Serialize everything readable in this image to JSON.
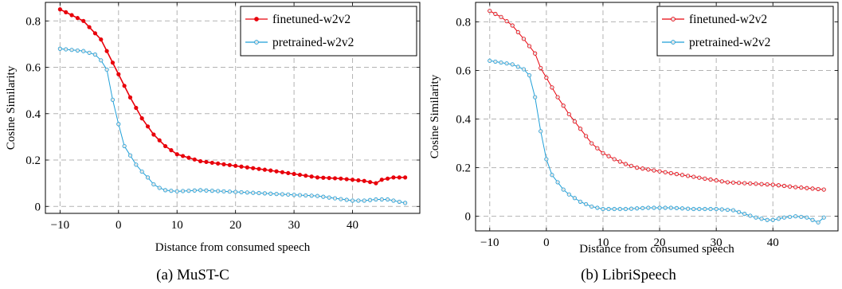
{
  "colors": {
    "finetuned": "#e8000b",
    "pretrained": "#1f9fd8",
    "grid": "#b3b3b3"
  },
  "chart_data": [
    {
      "type": "line",
      "caption": "(a)  MuST-C",
      "xlabel": "Distance from consumed speech",
      "ylabel": "Cosine Similarity",
      "xlim": [
        -12.5,
        51.5
      ],
      "ylim": [
        -0.03,
        0.88
      ],
      "xticks": [
        -10,
        0,
        10,
        20,
        30,
        40
      ],
      "xtick_labels": [
        "−10",
        "0",
        "10",
        "20",
        "30",
        "40"
      ],
      "yticks": [
        0,
        0.2,
        0.4,
        0.6,
        0.8
      ],
      "ytick_labels": [
        "0",
        "0.2",
        "0.4",
        "0.6",
        "0.8"
      ],
      "grid": true,
      "legend_position": "top-right",
      "marker_style": "filled",
      "series": [
        {
          "name": "finetuned-w2v2",
          "color_key": "finetuned",
          "points": [
            [
              -10,
              0.85
            ],
            [
              -6,
              0.8
            ],
            [
              -3,
              0.72
            ],
            [
              -2,
              0.67
            ],
            [
              0,
              0.57
            ],
            [
              2,
              0.47
            ],
            [
              4,
              0.38
            ],
            [
              6,
              0.31
            ],
            [
              8,
              0.26
            ],
            [
              10,
              0.225
            ],
            [
              14,
              0.195
            ],
            [
              20,
              0.175
            ],
            [
              26,
              0.155
            ],
            [
              30,
              0.14
            ],
            [
              34,
              0.125
            ],
            [
              38,
              0.12
            ],
            [
              42,
              0.11
            ],
            [
              44,
              0.1
            ],
            [
              45,
              0.115
            ],
            [
              47,
              0.125
            ],
            [
              49,
              0.125
            ]
          ]
        },
        {
          "name": "pretrained-w2v2",
          "color_key": "pretrained",
          "points": [
            [
              -10,
              0.68
            ],
            [
              -6,
              0.67
            ],
            [
              -4,
              0.655
            ],
            [
              -3,
              0.63
            ],
            [
              -2,
              0.59
            ],
            [
              -1,
              0.46
            ],
            [
              0,
              0.355
            ],
            [
              1,
              0.26
            ],
            [
              2,
              0.22
            ],
            [
              3,
              0.18
            ],
            [
              4,
              0.15
            ],
            [
              5,
              0.125
            ],
            [
              6,
              0.095
            ],
            [
              7,
              0.08
            ],
            [
              8,
              0.07
            ],
            [
              10,
              0.065
            ],
            [
              14,
              0.07
            ],
            [
              18,
              0.065
            ],
            [
              22,
              0.06
            ],
            [
              26,
              0.055
            ],
            [
              30,
              0.05
            ],
            [
              34,
              0.045
            ],
            [
              37,
              0.035
            ],
            [
              40,
              0.025
            ],
            [
              42,
              0.025
            ],
            [
              44,
              0.03
            ],
            [
              46,
              0.03
            ],
            [
              48,
              0.02
            ],
            [
              49,
              0.015
            ]
          ]
        }
      ]
    },
    {
      "type": "line",
      "caption": "(b)  LibriSpeech",
      "xlabel": "Distance from consumed speech",
      "ylabel": "Cosine Similarity",
      "xlim": [
        -12.5,
        51.5
      ],
      "ylim": [
        -0.06,
        0.88
      ],
      "xticks": [
        -10,
        0,
        10,
        20,
        30,
        40
      ],
      "xtick_labels": [
        "−10",
        "0",
        "10",
        "20",
        "30",
        "40"
      ],
      "yticks": [
        0,
        0.2,
        0.4,
        0.6,
        0.8
      ],
      "ytick_labels": [
        "0",
        "0.2",
        "0.4",
        "0.6",
        "0.8"
      ],
      "grid": true,
      "legend_position": "top-right",
      "marker_style": "hollow",
      "series": [
        {
          "name": "finetuned-w2v2",
          "color_key": "finetuned",
          "points": [
            [
              -10,
              0.845
            ],
            [
              -8,
              0.82
            ],
            [
              -6,
              0.785
            ],
            [
              -4,
              0.73
            ],
            [
              -2,
              0.67
            ],
            [
              -1,
              0.61
            ],
            [
              0,
              0.57
            ],
            [
              2,
              0.49
            ],
            [
              4,
              0.42
            ],
            [
              6,
              0.36
            ],
            [
              8,
              0.3
            ],
            [
              10,
              0.26
            ],
            [
              12,
              0.235
            ],
            [
              14,
              0.215
            ],
            [
              16,
              0.2
            ],
            [
              20,
              0.185
            ],
            [
              24,
              0.17
            ],
            [
              28,
              0.155
            ],
            [
              32,
              0.14
            ],
            [
              36,
              0.135
            ],
            [
              40,
              0.13
            ],
            [
              44,
              0.12
            ],
            [
              49,
              0.11
            ]
          ]
        },
        {
          "name": "pretrained-w2v2",
          "color_key": "pretrained",
          "points": [
            [
              -10,
              0.64
            ],
            [
              -6,
              0.625
            ],
            [
              -4,
              0.605
            ],
            [
              -3,
              0.58
            ],
            [
              -2,
              0.49
            ],
            [
              -1,
              0.35
            ],
            [
              0,
              0.235
            ],
            [
              1,
              0.17
            ],
            [
              2,
              0.14
            ],
            [
              3,
              0.11
            ],
            [
              4,
              0.09
            ],
            [
              5,
              0.075
            ],
            [
              6,
              0.06
            ],
            [
              8,
              0.04
            ],
            [
              10,
              0.03
            ],
            [
              14,
              0.03
            ],
            [
              18,
              0.035
            ],
            [
              22,
              0.035
            ],
            [
              26,
              0.03
            ],
            [
              30,
              0.03
            ],
            [
              33,
              0.025
            ],
            [
              35,
              0.01
            ],
            [
              37,
              -0.005
            ],
            [
              39,
              -0.015
            ],
            [
              40,
              -0.015
            ],
            [
              42,
              -0.005
            ],
            [
              44,
              0.0
            ],
            [
              46,
              -0.005
            ],
            [
              48,
              -0.025
            ],
            [
              49,
              -0.005
            ]
          ]
        }
      ]
    }
  ]
}
